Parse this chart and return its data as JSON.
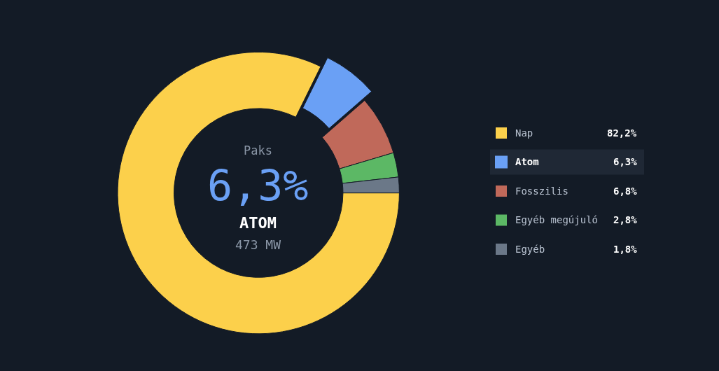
{
  "chart_data": {
    "type": "donut",
    "categories": [
      "Nap",
      "Atom",
      "Fosszilis",
      "Egyéb megújuló",
      "Egyéb"
    ],
    "values": [
      82.2,
      6.3,
      6.8,
      2.8,
      1.8
    ],
    "value_labels": [
      "82,2%",
      "6,3%",
      "6,8%",
      "2,8%",
      "1,8%"
    ],
    "colors": [
      "#fcd04b",
      "#6aa0f5",
      "#c0695a",
      "#5cb865",
      "#6b7888"
    ],
    "annotations": [
      "Paks",
      "6,3%",
      "ATOM",
      "473 MW"
    ],
    "legend": "right"
  }
}
